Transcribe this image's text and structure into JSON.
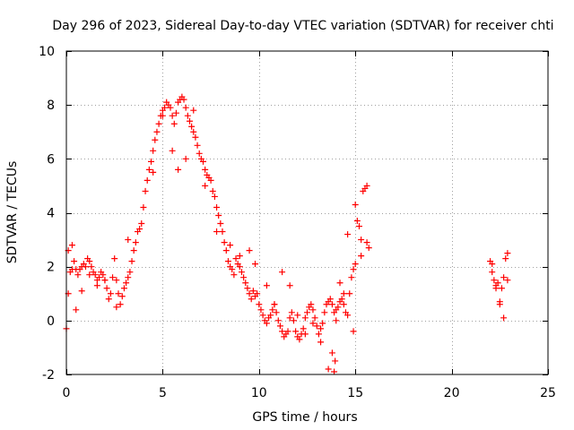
{
  "chart_data": {
    "type": "scatter",
    "title": "Day 296 of 2023, Sidereal Day-to-day VTEC variation (SDTVAR) for receiver chti",
    "xlabel": "GPS time / hours",
    "ylabel": "SDTVAR / TECUs",
    "xlim": [
      0,
      25
    ],
    "ylim": [
      -2,
      10
    ],
    "xticks": [
      0,
      5,
      10,
      15,
      20,
      25
    ],
    "yticks": [
      -2,
      0,
      2,
      4,
      6,
      8,
      10
    ],
    "grid": true,
    "marker": "plus",
    "colors": {
      "series": "#ff0000",
      "grid": "#a0a0a0",
      "axis": "#000000"
    },
    "series": [
      {
        "name": "SDTVAR",
        "x": [
          0.0,
          0.1,
          0.2,
          0.3,
          0.4,
          0.5,
          0.6,
          0.7,
          0.8,
          0.9,
          1.0,
          1.1,
          1.2,
          1.3,
          1.4,
          1.5,
          1.6,
          1.7,
          1.8,
          1.9,
          2.0,
          2.1,
          2.2,
          2.3,
          2.4,
          2.5,
          2.6,
          2.7,
          2.8,
          2.9,
          3.0,
          3.1,
          3.2,
          3.3,
          3.4,
          3.5,
          3.6,
          3.7,
          3.8,
          3.9,
          4.0,
          4.1,
          4.2,
          4.3,
          4.4,
          4.5,
          4.6,
          4.7,
          4.8,
          4.9,
          5.0,
          5.1,
          5.2,
          5.3,
          5.4,
          5.5,
          5.6,
          5.7,
          5.8,
          5.9,
          6.0,
          6.1,
          6.2,
          6.3,
          6.4,
          6.5,
          6.6,
          6.7,
          6.8,
          6.9,
          7.0,
          7.1,
          7.2,
          7.3,
          7.4,
          7.5,
          7.6,
          7.7,
          7.8,
          7.9,
          8.0,
          8.1,
          8.2,
          8.3,
          8.4,
          8.5,
          8.6,
          8.7,
          8.8,
          8.9,
          9.0,
          9.1,
          9.2,
          9.3,
          9.4,
          9.5,
          9.6,
          9.7,
          9.8,
          9.9,
          10.0,
          10.1,
          10.2,
          10.3,
          10.4,
          10.5,
          10.6,
          10.7,
          10.8,
          10.9,
          11.0,
          11.1,
          11.2,
          11.3,
          11.4,
          11.5,
          11.6,
          11.7,
          11.8,
          11.9,
          12.0,
          12.1,
          12.2,
          12.3,
          12.4,
          12.5,
          12.6,
          12.7,
          12.8,
          12.9,
          13.0,
          13.1,
          13.2,
          13.3,
          13.4,
          13.5,
          13.6,
          13.7,
          13.8,
          13.9,
          14.0,
          14.1,
          14.2,
          14.3,
          14.4,
          14.5,
          14.6,
          14.7,
          14.8,
          14.9,
          15.0,
          15.1,
          15.2,
          15.3,
          15.4,
          15.5,
          15.6,
          15.7,
          22.0,
          22.1,
          22.2,
          22.3,
          22.4,
          22.5,
          22.6,
          22.7,
          22.8,
          22.9,
          0.1,
          0.3,
          0.5,
          0.8,
          1.2,
          1.6,
          2.0,
          2.6,
          3.2,
          4.5,
          5.0,
          5.5,
          5.8,
          6.2,
          6.6,
          7.2,
          7.8,
          8.5,
          9.0,
          9.5,
          9.8,
          10.4,
          10.8,
          11.2,
          11.6,
          12.0,
          12.4,
          12.8,
          13.2,
          13.6,
          13.8,
          14.0,
          14.2,
          14.4,
          14.6,
          15.0,
          15.3,
          15.6,
          22.1,
          22.3,
          22.5,
          22.7,
          22.9,
          14.9,
          13.9,
          13.95
        ],
        "y": [
          -0.3,
          1.0,
          1.8,
          2.8,
          2.2,
          1.9,
          1.7,
          1.9,
          2.0,
          2.1,
          2.0,
          2.3,
          2.2,
          2.0,
          1.8,
          1.7,
          1.5,
          1.6,
          1.8,
          1.7,
          1.5,
          1.2,
          0.8,
          1.0,
          1.6,
          2.3,
          1.5,
          1.0,
          0.6,
          0.9,
          1.2,
          1.4,
          1.6,
          1.8,
          2.2,
          2.6,
          2.9,
          3.3,
          3.4,
          3.6,
          4.2,
          4.8,
          5.2,
          5.6,
          5.9,
          6.3,
          6.7,
          7.0,
          7.3,
          7.6,
          7.8,
          7.9,
          8.1,
          8.0,
          7.9,
          7.6,
          7.3,
          7.7,
          8.1,
          8.2,
          8.3,
          8.2,
          7.9,
          7.6,
          7.4,
          7.2,
          7.0,
          6.8,
          6.5,
          6.2,
          6.0,
          5.9,
          5.6,
          5.4,
          5.3,
          5.2,
          4.8,
          4.6,
          4.2,
          3.9,
          3.6,
          3.3,
          2.9,
          2.6,
          2.2,
          2.0,
          1.9,
          1.7,
          2.3,
          2.1,
          2.0,
          1.8,
          1.6,
          1.4,
          1.2,
          1.0,
          0.8,
          1.1,
          0.9,
          1.0,
          0.6,
          0.4,
          0.2,
          0.0,
          -0.1,
          0.1,
          0.2,
          0.4,
          0.6,
          0.3,
          0.0,
          -0.2,
          -0.4,
          -0.6,
          -0.5,
          -0.4,
          0.1,
          0.3,
          0.0,
          -0.4,
          -0.6,
          -0.7,
          -0.5,
          -0.3,
          0.1,
          0.3,
          0.5,
          0.6,
          0.4,
          0.1,
          -0.2,
          -0.5,
          -0.3,
          -0.1,
          0.3,
          0.6,
          0.7,
          0.8,
          0.6,
          0.3,
          0.4,
          0.5,
          0.7,
          0.8,
          0.6,
          0.3,
          0.2,
          1.0,
          1.6,
          1.9,
          2.1,
          3.7,
          3.5,
          3.0,
          4.8,
          4.9,
          5.0,
          2.7,
          2.2,
          1.8,
          1.5,
          1.2,
          1.4,
          0.7,
          1.2,
          1.6,
          2.3,
          1.5,
          2.6,
          1.9,
          0.4,
          1.1,
          1.7,
          1.3,
          1.5,
          0.5,
          3.0,
          5.5,
          7.6,
          6.3,
          5.6,
          6.0,
          7.8,
          5.0,
          3.3,
          2.8,
          2.4,
          2.6,
          2.1,
          1.3,
          0.6,
          1.8,
          1.3,
          0.2,
          -0.5,
          -0.1,
          -0.8,
          -1.8,
          -1.2,
          0.0,
          1.4,
          1.0,
          3.2,
          4.3,
          2.4,
          2.9,
          2.1,
          1.3,
          0.6,
          0.1,
          2.5,
          -0.4,
          -1.9,
          -1.5
        ]
      }
    ]
  }
}
